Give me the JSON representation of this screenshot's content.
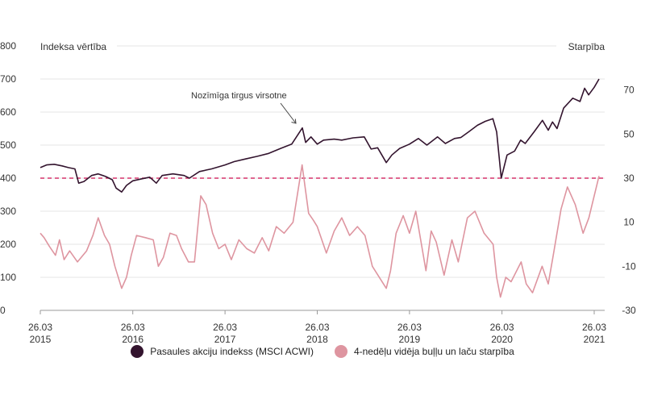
{
  "chart_data": {
    "type": "line",
    "left_axis": {
      "title": "Indeksa vērtība",
      "ticks": [
        0,
        100,
        200,
        300,
        400,
        500,
        600,
        700,
        800
      ],
      "range": [
        0,
        800
      ]
    },
    "right_axis": {
      "title": "Starpība",
      "ticks": [
        -30,
        -10,
        10,
        30,
        50,
        70
      ],
      "range": [
        -30,
        90
      ]
    },
    "x_ticks": [
      {
        "date": "2015-03-26",
        "line1": "26.03",
        "line2": "2015"
      },
      {
        "date": "2016-03-26",
        "line1": "26.03",
        "line2": "2016"
      },
      {
        "date": "2017-03-26",
        "line1": "26.03",
        "line2": "2017"
      },
      {
        "date": "2018-03-26",
        "line1": "26.03",
        "line2": "2018"
      },
      {
        "date": "2019-03-26",
        "line1": "26.03",
        "line2": "2019"
      },
      {
        "date": "2020-03-26",
        "line1": "26.03",
        "line2": "2020"
      },
      {
        "date": "2021-03-26",
        "line1": "26.03",
        "line2": "2021"
      }
    ],
    "x_range": [
      "2015-03-26",
      "2021-04-20"
    ],
    "threshold": {
      "axis": "right",
      "value": 30,
      "color": "#d6336c",
      "style": "dashed"
    },
    "annotation": {
      "text": "Nozīmīga tirgus virsotne",
      "date": "2018-01-26",
      "value": 555
    },
    "series": [
      {
        "name": "Pasaules akciju indekss (MSCI ACWI)",
        "axis": "left",
        "color": "#33142e",
        "points": [
          [
            "2015-03-26",
            432
          ],
          [
            "2015-04-20",
            440
          ],
          [
            "2015-05-20",
            442
          ],
          [
            "2015-06-20",
            437
          ],
          [
            "2015-07-15",
            432
          ],
          [
            "2015-08-10",
            428
          ],
          [
            "2015-08-25",
            385
          ],
          [
            "2015-09-15",
            390
          ],
          [
            "2015-10-15",
            408
          ],
          [
            "2015-11-10",
            413
          ],
          [
            "2015-12-10",
            405
          ],
          [
            "2016-01-05",
            395
          ],
          [
            "2016-01-20",
            370
          ],
          [
            "2016-02-11",
            358
          ],
          [
            "2016-03-01",
            378
          ],
          [
            "2016-03-26",
            392
          ],
          [
            "2016-05-01",
            398
          ],
          [
            "2016-06-01",
            403
          ],
          [
            "2016-06-27",
            385
          ],
          [
            "2016-07-20",
            408
          ],
          [
            "2016-09-01",
            413
          ],
          [
            "2016-10-15",
            408
          ],
          [
            "2016-11-05",
            400
          ],
          [
            "2016-12-15",
            420
          ],
          [
            "2017-02-01",
            428
          ],
          [
            "2017-03-26",
            440
          ],
          [
            "2017-05-01",
            450
          ],
          [
            "2017-06-15",
            458
          ],
          [
            "2017-08-01",
            466
          ],
          [
            "2017-09-15",
            475
          ],
          [
            "2017-11-01",
            490
          ],
          [
            "2017-12-15",
            503
          ],
          [
            "2018-01-26",
            552
          ],
          [
            "2018-02-08",
            508
          ],
          [
            "2018-03-01",
            525
          ],
          [
            "2018-03-26",
            503
          ],
          [
            "2018-04-20",
            515
          ],
          [
            "2018-06-01",
            518
          ],
          [
            "2018-07-01",
            515
          ],
          [
            "2018-08-15",
            522
          ],
          [
            "2018-09-28",
            525
          ],
          [
            "2018-10-25",
            488
          ],
          [
            "2018-11-20",
            492
          ],
          [
            "2018-12-24",
            447
          ],
          [
            "2019-01-15",
            470
          ],
          [
            "2019-02-15",
            490
          ],
          [
            "2019-03-26",
            503
          ],
          [
            "2019-04-30",
            520
          ],
          [
            "2019-06-03",
            500
          ],
          [
            "2019-07-15",
            525
          ],
          [
            "2019-08-15",
            505
          ],
          [
            "2019-09-20",
            520
          ],
          [
            "2019-10-15",
            523
          ],
          [
            "2019-11-15",
            540
          ],
          [
            "2019-12-20",
            560
          ],
          [
            "2020-01-20",
            572
          ],
          [
            "2020-02-19",
            580
          ],
          [
            "2020-03-05",
            540
          ],
          [
            "2020-03-23",
            400
          ],
          [
            "2020-04-15",
            470
          ],
          [
            "2020-05-15",
            482
          ],
          [
            "2020-06-08",
            515
          ],
          [
            "2020-06-26",
            505
          ],
          [
            "2020-07-31",
            540
          ],
          [
            "2020-09-02",
            575
          ],
          [
            "2020-09-25",
            545
          ],
          [
            "2020-10-12",
            570
          ],
          [
            "2020-10-30",
            550
          ],
          [
            "2020-11-25",
            612
          ],
          [
            "2020-12-31",
            642
          ],
          [
            "2021-01-29",
            632
          ],
          [
            "2021-02-16",
            672
          ],
          [
            "2021-03-04",
            652
          ],
          [
            "2021-03-26",
            675
          ],
          [
            "2021-04-14",
            700
          ]
        ]
      },
      {
        "name": "4-nedēļu vidēja buļļu un laču starpība",
        "axis": "right",
        "color": "#de95a0",
        "points": [
          [
            "2015-03-26",
            5
          ],
          [
            "2015-04-10",
            3
          ],
          [
            "2015-05-01",
            -1
          ],
          [
            "2015-05-25",
            -5
          ],
          [
            "2015-06-10",
            2
          ],
          [
            "2015-06-28",
            -7
          ],
          [
            "2015-07-20",
            -3
          ],
          [
            "2015-08-20",
            -8
          ],
          [
            "2015-09-25",
            -3
          ],
          [
            "2015-10-20",
            4
          ],
          [
            "2015-11-10",
            12
          ],
          [
            "2015-12-05",
            4
          ],
          [
            "2015-12-25",
            0
          ],
          [
            "2016-01-15",
            -10
          ],
          [
            "2016-02-11",
            -20
          ],
          [
            "2016-03-01",
            -15
          ],
          [
            "2016-03-20",
            -5
          ],
          [
            "2016-04-10",
            4
          ],
          [
            "2016-05-15",
            3
          ],
          [
            "2016-06-15",
            2
          ],
          [
            "2016-07-05",
            -10
          ],
          [
            "2016-07-25",
            -6
          ],
          [
            "2016-08-20",
            5
          ],
          [
            "2016-09-15",
            4
          ],
          [
            "2016-10-05",
            -2
          ],
          [
            "2016-11-01",
            -8
          ],
          [
            "2016-11-25",
            -8
          ],
          [
            "2016-12-20",
            22
          ],
          [
            "2017-01-10",
            18
          ],
          [
            "2017-02-05",
            5
          ],
          [
            "2017-03-01",
            -2
          ],
          [
            "2017-03-26",
            0
          ],
          [
            "2017-04-20",
            -7
          ],
          [
            "2017-05-20",
            2
          ],
          [
            "2017-06-20",
            -2
          ],
          [
            "2017-07-20",
            -4
          ],
          [
            "2017-08-20",
            3
          ],
          [
            "2017-09-15",
            -3
          ],
          [
            "2017-10-15",
            8
          ],
          [
            "2017-11-15",
            5
          ],
          [
            "2017-12-20",
            10
          ],
          [
            "2018-01-25",
            36
          ],
          [
            "2018-02-20",
            14
          ],
          [
            "2018-03-10",
            11
          ],
          [
            "2018-03-26",
            8
          ],
          [
            "2018-05-01",
            -4
          ],
          [
            "2018-06-01",
            6
          ],
          [
            "2018-07-01",
            12
          ],
          [
            "2018-08-01",
            4
          ],
          [
            "2018-09-01",
            8
          ],
          [
            "2018-10-01",
            4
          ],
          [
            "2018-10-30",
            -10
          ],
          [
            "2018-12-24",
            -20
          ],
          [
            "2019-01-10",
            -12
          ],
          [
            "2019-02-01",
            5
          ],
          [
            "2019-03-01",
            13
          ],
          [
            "2019-03-26",
            5
          ],
          [
            "2019-04-20",
            15
          ],
          [
            "2019-05-30",
            -12
          ],
          [
            "2019-06-20",
            6
          ],
          [
            "2019-07-10",
            1
          ],
          [
            "2019-08-10",
            -14
          ],
          [
            "2019-09-10",
            2
          ],
          [
            "2019-10-05",
            -8
          ],
          [
            "2019-11-10",
            12
          ],
          [
            "2019-12-10",
            15
          ],
          [
            "2020-01-15",
            5
          ],
          [
            "2020-02-20",
            0
          ],
          [
            "2020-03-05",
            -15
          ],
          [
            "2020-03-20",
            -24
          ],
          [
            "2020-04-10",
            -15
          ],
          [
            "2020-05-01",
            -17
          ],
          [
            "2020-06-10",
            -8
          ],
          [
            "2020-06-30",
            -18
          ],
          [
            "2020-07-25",
            -22
          ],
          [
            "2020-09-01",
            -10
          ],
          [
            "2020-09-25",
            -18
          ],
          [
            "2020-10-15",
            -5
          ],
          [
            "2020-11-15",
            16
          ],
          [
            "2020-12-10",
            26
          ],
          [
            "2021-01-10",
            18
          ],
          [
            "2021-02-10",
            5
          ],
          [
            "2021-03-05",
            12
          ],
          [
            "2021-03-26",
            22
          ],
          [
            "2021-04-14",
            31
          ]
        ]
      }
    ]
  },
  "legend": [
    {
      "label": "Pasaules akciju indekss (MSCI ACWI)",
      "color": "#33142e"
    },
    {
      "label": "4-nedēļu vidēja buļļu un laču starpība",
      "color": "#de95a0"
    }
  ]
}
